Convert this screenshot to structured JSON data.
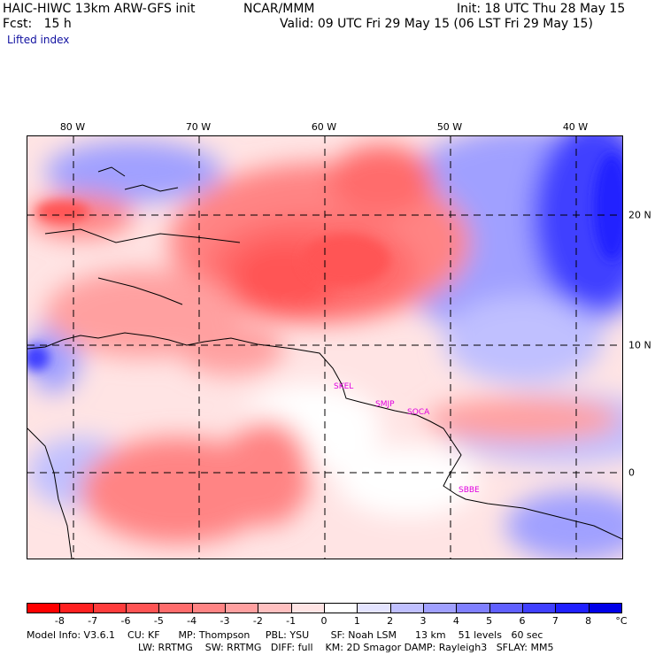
{
  "header": {
    "model": "HAIC-HIWC 13km ARW-GFS init",
    "org": "NCAR/MMM",
    "init": "Init: 18 UTC Thu 28 May 15",
    "fcst": "Fcst:   15 h",
    "valid": "Valid: 09 UTC Fri 29 May 15 (06 LST Fri 29 May 15)",
    "field": "Lifted index"
  },
  "axes": {
    "lon_labels": [
      "80 W",
      "70 W",
      "60 W",
      "50 W",
      "40 W"
    ],
    "lat_labels": [
      "20 N",
      "10 N",
      "0"
    ]
  },
  "stations": [
    "SKEL",
    "SMJP",
    "SOCA",
    "SBBE"
  ],
  "colorbar": {
    "labels": [
      "-8",
      "-7",
      "-6",
      "-5",
      "-4",
      "-3",
      "-2",
      "-1",
      "0",
      "1",
      "2",
      "3",
      "4",
      "5",
      "6",
      "7",
      "8"
    ],
    "unit": "°C",
    "colors": [
      "#ff0000",
      "#ff2020",
      "#ff3c3c",
      "#ff5454",
      "#ff6c6c",
      "#ff8484",
      "#ffa0a0",
      "#ffc0c0",
      "#ffe4e4",
      "#ffffff",
      "#e4e4ff",
      "#c0c0ff",
      "#a0a0ff",
      "#8080ff",
      "#6060ff",
      "#4040ff",
      "#2020ff",
      "#0000e8"
    ]
  },
  "footer": {
    "line1": "Model Info: V3.6.1    CU: KF      MP: Thompson     PBL: YSU       SF: Noah LSM      13 km    51 levels   60 sec",
    "line2": "LW: RRTMG    SW: RRTMG   DIFF: full    KM: 2D Smagor DAMP: Rayleigh3   SFLAY: MM5"
  }
}
